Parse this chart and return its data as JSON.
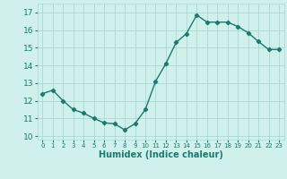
{
  "x": [
    0,
    1,
    2,
    3,
    4,
    5,
    6,
    7,
    8,
    9,
    10,
    11,
    12,
    13,
    14,
    15,
    16,
    17,
    18,
    19,
    20,
    21,
    22,
    23
  ],
  "y": [
    12.4,
    12.6,
    12.0,
    11.5,
    11.3,
    11.0,
    10.75,
    10.7,
    10.35,
    10.7,
    11.5,
    13.1,
    14.1,
    15.3,
    15.8,
    16.85,
    16.45,
    16.45,
    16.45,
    16.2,
    15.85,
    15.35,
    14.9,
    14.9
  ],
  "xlabel": "Humidex (Indice chaleur)",
  "ylim": [
    9.8,
    17.5
  ],
  "xlim": [
    -0.5,
    23.5
  ],
  "yticks": [
    10,
    11,
    12,
    13,
    14,
    15,
    16,
    17
  ],
  "xticks": [
    0,
    1,
    2,
    3,
    4,
    5,
    6,
    7,
    8,
    9,
    10,
    11,
    12,
    13,
    14,
    15,
    16,
    17,
    18,
    19,
    20,
    21,
    22,
    23
  ],
  "line_color": "#1a7a6e",
  "bg_color": "#cff0eb",
  "grid_color": "#aad8d3",
  "marker": "D",
  "marker_size": 2.2,
  "linewidth": 1.0
}
